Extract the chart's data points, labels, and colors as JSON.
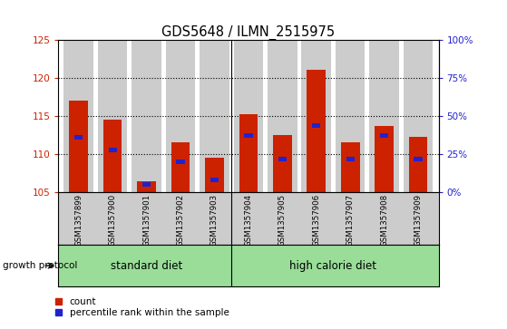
{
  "title": "GDS5648 / ILMN_2515975",
  "samples": [
    "GSM1357899",
    "GSM1357900",
    "GSM1357901",
    "GSM1357902",
    "GSM1357903",
    "GSM1357904",
    "GSM1357905",
    "GSM1357906",
    "GSM1357907",
    "GSM1357908",
    "GSM1357909"
  ],
  "counts": [
    117.0,
    114.5,
    106.5,
    111.5,
    109.5,
    115.2,
    112.5,
    121.0,
    111.5,
    113.7,
    112.3
  ],
  "percentile_ranks": [
    36,
    28,
    5,
    20,
    8,
    37,
    22,
    44,
    22,
    37,
    22
  ],
  "ylim_left": [
    105,
    125
  ],
  "ylim_right": [
    0,
    100
  ],
  "yticks_left": [
    105,
    110,
    115,
    120,
    125
  ],
  "yticks_right": [
    0,
    25,
    50,
    75,
    100
  ],
  "ytick_labels_right": [
    "0%",
    "25%",
    "50%",
    "75%",
    "100%"
  ],
  "bar_color": "#cc2200",
  "percentile_color": "#2222cc",
  "bar_width": 0.55,
  "group_label": "growth protocol",
  "legend_count_label": "count",
  "legend_percentile_label": "percentile rank within the sample",
  "grid_color": "#000000",
  "tick_label_color_left": "#cc2200",
  "tick_label_color_right": "#2222cc",
  "bg_color": "#ffffff",
  "bar_bg_color": "#cccccc",
  "group_area_color": "#99dd99",
  "sep_index": 4.5
}
